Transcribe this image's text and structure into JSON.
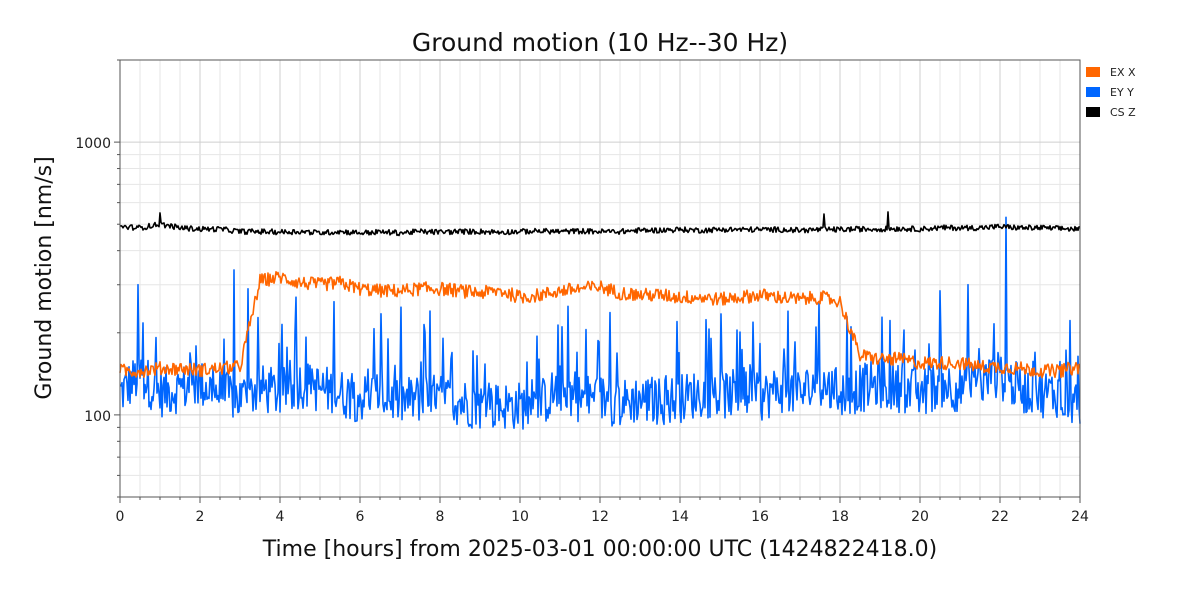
{
  "chart_data": {
    "type": "line",
    "title": "Ground motion (10 Hz--30 Hz)",
    "xlabel": "Time [hours] from 2025-03-01 00:00:00 UTC (1424822418.0)",
    "ylabel": "Ground motion [nm/s]",
    "xlim": [
      0,
      24
    ],
    "ylim": [
      50,
      2000
    ],
    "yscale": "log",
    "grid": true,
    "legend_position": "top-right (outside plot)",
    "xticks": [
      "0",
      "2",
      "4",
      "6",
      "8",
      "10",
      "12",
      "14",
      "16",
      "18",
      "20",
      "22",
      "24"
    ],
    "yticks": [
      "100",
      "1000"
    ],
    "x": [
      0,
      0.5,
      1,
      1.5,
      2,
      2.5,
      3,
      3.5,
      4,
      4.5,
      5,
      5.5,
      6,
      6.5,
      7,
      7.5,
      8,
      8.5,
      9,
      9.5,
      10,
      10.5,
      11,
      11.5,
      12,
      12.5,
      13,
      13.5,
      14,
      14.5,
      15,
      15.5,
      16,
      16.5,
      17,
      17.5,
      18,
      18.5,
      19,
      19.5,
      20,
      20.5,
      21,
      21.5,
      22,
      22.5,
      23,
      23.5,
      24
    ],
    "series": [
      {
        "name": "EX X",
        "color": "#ff6600",
        "values": [
          145,
          145,
          148,
          148,
          146,
          148,
          150,
          310,
          320,
          305,
          300,
          305,
          290,
          285,
          285,
          290,
          290,
          285,
          280,
          285,
          270,
          275,
          285,
          290,
          295,
          280,
          275,
          275,
          270,
          270,
          265,
          270,
          275,
          270,
          265,
          270,
          260,
          165,
          160,
          160,
          155,
          155,
          155,
          150,
          150,
          148,
          145,
          145,
          150
        ]
      },
      {
        "name": "EY Y",
        "color": "#0066ff",
        "values": [
          120,
          140,
          120,
          125,
          130,
          120,
          115,
          125,
          120,
          130,
          125,
          120,
          115,
          120,
          112,
          115,
          115,
          112,
          108,
          108,
          108,
          110,
          125,
          115,
          115,
          110,
          115,
          112,
          115,
          120,
          118,
          120,
          115,
          125,
          120,
          130,
          120,
          125,
          130,
          125,
          120,
          130,
          125,
          130,
          140,
          125,
          120,
          120,
          110
        ]
      },
      {
        "name": "CS Z",
        "color": "#000000",
        "values": [
          490,
          485,
          500,
          485,
          480,
          480,
          470,
          470,
          468,
          470,
          465,
          470,
          465,
          468,
          465,
          470,
          468,
          470,
          470,
          468,
          470,
          472,
          470,
          472,
          470,
          470,
          475,
          475,
          478,
          475,
          478,
          478,
          478,
          478,
          475,
          478,
          478,
          480,
          480,
          482,
          480,
          485,
          485,
          485,
          490,
          485,
          485,
          482,
          480
        ]
      }
    ],
    "spikes": [
      {
        "series": "EY Y",
        "x": 22.15,
        "y": 530
      },
      {
        "series": "EY Y",
        "x": 21.2,
        "y": 300
      },
      {
        "series": "EY Y",
        "x": 0.45,
        "y": 300
      },
      {
        "series": "EY Y",
        "x": 2.85,
        "y": 340
      },
      {
        "series": "EY Y",
        "x": 3.2,
        "y": 290
      },
      {
        "series": "EY Y",
        "x": 4.4,
        "y": 270
      },
      {
        "series": "EY Y",
        "x": 5.35,
        "y": 260
      },
      {
        "series": "EY Y",
        "x": 6.7,
        "y": 190
      },
      {
        "series": "EY Y",
        "x": 11.2,
        "y": 250
      },
      {
        "series": "EY Y",
        "x": 16.7,
        "y": 240
      },
      {
        "series": "EY Y",
        "x": 17.4,
        "y": 210
      },
      {
        "series": "CS Z",
        "x": 1.0,
        "y": 550
      },
      {
        "series": "CS Z",
        "x": 17.6,
        "y": 545
      },
      {
        "series": "CS Z",
        "x": 19.2,
        "y": 555
      }
    ]
  }
}
